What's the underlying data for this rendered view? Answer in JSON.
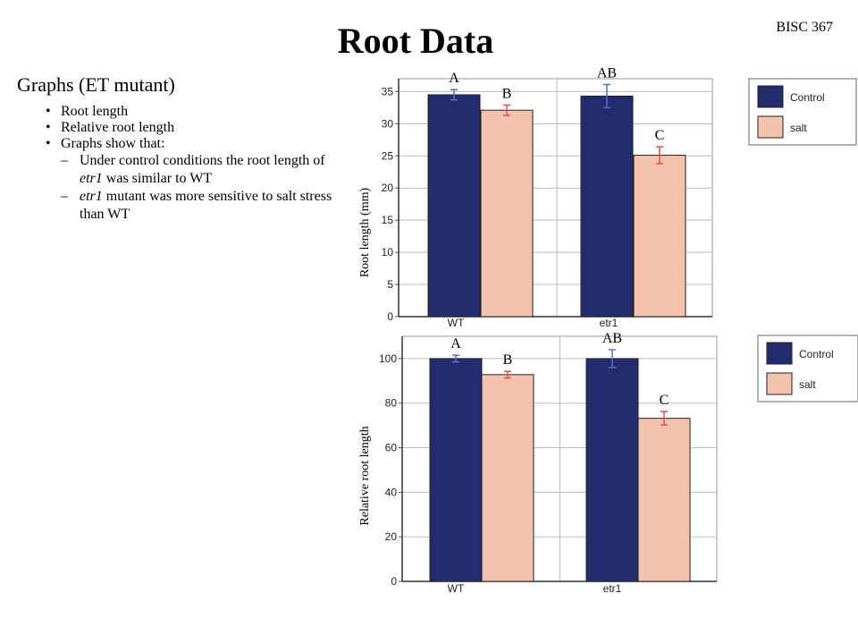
{
  "slide": {
    "title": "Root Data",
    "course": "BISC 367",
    "heading": "Graphs (ET mutant)",
    "bullets": [
      "Root length",
      "Relative root length",
      "Graphs show that:"
    ],
    "sub1": {
      "pre": "Under control conditions the root length of ",
      "em": "etr1",
      "post": " was similar to WT"
    },
    "sub2": {
      "pre": "",
      "em": "etr1",
      "post": " mutant was more sensitive to salt stress than WT"
    }
  },
  "colors": {
    "control": "#232c6e",
    "salt": "#f3c3ae",
    "err_control": "#5b6fc0",
    "err_salt": "#e05050",
    "grid": "#bbbbbb"
  },
  "chart_data": [
    {
      "type": "bar",
      "categories": [
        "WT",
        "etr1"
      ],
      "series": [
        {
          "name": "Control",
          "values": [
            34.5,
            34.3
          ],
          "errors": [
            0.8,
            1.8
          ],
          "letters": [
            "A",
            "AB"
          ]
        },
        {
          "name": "salt",
          "values": [
            32.1,
            25.1
          ],
          "errors": [
            0.8,
            1.3
          ],
          "letters": [
            "B",
            "C"
          ]
        }
      ],
      "ylabel": "Root length (mm)",
      "ylim": [
        0,
        37
      ],
      "yticks": [
        0,
        5,
        10,
        15,
        20,
        25,
        30,
        35
      ],
      "grid": true,
      "legend": "top-right"
    },
    {
      "type": "bar",
      "categories": [
        "WT",
        "etr1"
      ],
      "series": [
        {
          "name": "Control",
          "values": [
            100,
            100
          ],
          "errors": [
            1.5,
            4.0
          ],
          "letters": [
            "A",
            "AB"
          ]
        },
        {
          "name": "salt",
          "values": [
            92.8,
            73.2
          ],
          "errors": [
            1.5,
            3.0
          ],
          "letters": [
            "B",
            "C"
          ]
        }
      ],
      "ylabel": "Relative root length",
      "ylim": [
        0,
        110
      ],
      "yticks": [
        0,
        20,
        40,
        60,
        80,
        100
      ],
      "grid": true,
      "legend": "top-right"
    }
  ]
}
